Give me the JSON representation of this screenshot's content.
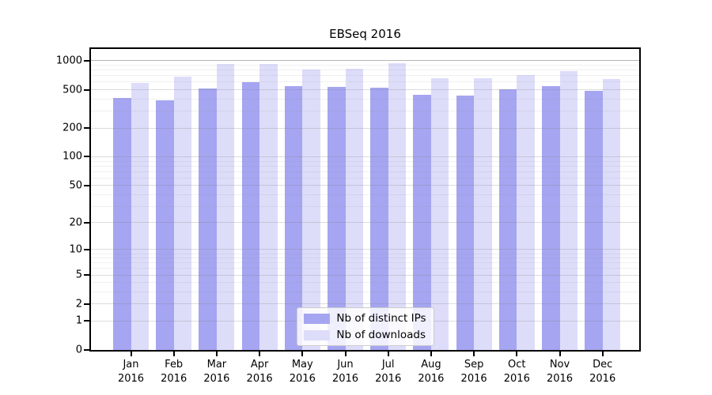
{
  "title": "EBSeq 2016",
  "legend": {
    "items": [
      {
        "label": "Nb of distinct IPs",
        "color": "#a5a5f1"
      },
      {
        "label": "Nb of downloads",
        "color": "#ddddfa"
      }
    ]
  },
  "chart_data": {
    "type": "bar",
    "title": "EBSeq 2016",
    "categories": [
      "Jan",
      "Feb",
      "Mar",
      "Apr",
      "May",
      "Jun",
      "Jul",
      "Aug",
      "Sep",
      "Oct",
      "Nov",
      "Dec"
    ],
    "year_label": "2016",
    "series": [
      {
        "name": "Nb of distinct IPs",
        "color": "#a5a5f1",
        "values": [
          413,
          391,
          512,
          597,
          550,
          534,
          521,
          445,
          437,
          504,
          544,
          486
        ]
      },
      {
        "name": "Nb of downloads",
        "color": "#ddddfa",
        "values": [
          592,
          681,
          925,
          918,
          811,
          826,
          941,
          660,
          658,
          716,
          781,
          648
        ]
      }
    ],
    "yscale": "log1p",
    "yticks": [
      1000,
      500,
      200,
      100,
      50,
      20,
      10,
      5,
      2,
      1,
      0
    ],
    "ylim": [
      0,
      1325
    ],
    "grid": true,
    "legend_position": "lower center"
  }
}
